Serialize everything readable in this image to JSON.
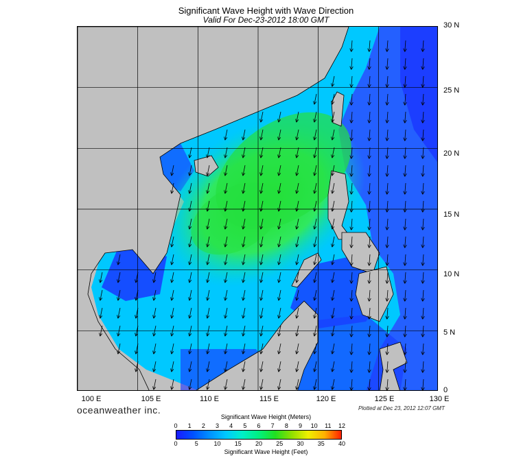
{
  "title": "Significant Wave Height with Wave Direction",
  "subtitle": "Valid For Dec-23-2012 18:00 GMT",
  "lat_labels": [
    "30 N",
    "25 N",
    "20 N",
    "15 N",
    "10 N",
    "5 N",
    "0"
  ],
  "lon_labels": [
    "100 E",
    "105 E",
    "110 E",
    "115 E",
    "120 E",
    "125 E",
    "130 E"
  ],
  "brand": "oceanweather inc.",
  "plotted": "Plotted at Dec 23, 2012 12:07 GMT",
  "colorbar": {
    "meters_title": "Significant Wave Height (Meters)",
    "feet_title": "Significant Wave Height (Feet)",
    "meters_ticks": [
      "0",
      "1",
      "2",
      "3",
      "4",
      "5",
      "6",
      "7",
      "8",
      "9",
      "10",
      "11",
      "12"
    ],
    "feet_ticks": [
      "0",
      "5",
      "10",
      "15",
      "20",
      "25",
      "30",
      "35",
      "40"
    ]
  },
  "colors": {
    "land": "#c0c0c0",
    "low": "#1a1aff",
    "mid": "#00c8ff",
    "high": "#20e020"
  },
  "map": {
    "lon_range": [
      100,
      130
    ],
    "lat_range": [
      0,
      30
    ],
    "grid_step_deg": 5,
    "wave_direction": "from northeast"
  }
}
